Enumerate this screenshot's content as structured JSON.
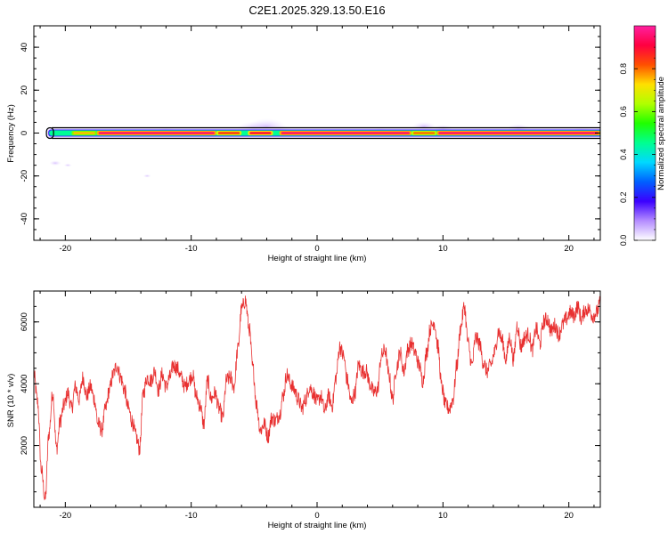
{
  "title": "C2E1.2025.329.13.50.E16",
  "colors": {
    "snr_line": "#e83030",
    "axis": "#000000"
  },
  "chart_data": [
    {
      "type": "heatmap",
      "name": "spectrogram",
      "xlabel": "Height of straight line (km)",
      "ylabel": "Frequency (Hz)",
      "xlim": [
        -22.5,
        22.5
      ],
      "ylim": [
        -50,
        50
      ],
      "xticks": [
        -20,
        -10,
        0,
        10,
        20
      ],
      "xtick_labels": [
        "-20",
        "-10",
        "0",
        "10",
        "20"
      ],
      "yticks": [
        -40,
        -20,
        0,
        20,
        40
      ],
      "ytick_labels": [
        "-40",
        "-20",
        "0",
        "20",
        "40"
      ],
      "band_frequency_hz": 0,
      "band_start_km": -21.5,
      "peak_amplitude_segments": [
        {
          "x0": -19.5,
          "x1": -17.5,
          "amp": 0.75
        },
        {
          "x0": -17.5,
          "x1": -8,
          "amp": 0.95
        },
        {
          "x0": -8,
          "x1": -6,
          "amp": 0.85
        },
        {
          "x0": -5.5,
          "x1": -3.5,
          "amp": 0.9
        },
        {
          "x0": -3,
          "x1": 7.5,
          "amp": 0.95
        },
        {
          "x0": 7.5,
          "x1": 9.5,
          "amp": 0.8
        },
        {
          "x0": 9.5,
          "x1": 22.5,
          "amp": 0.95
        }
      ]
    },
    {
      "type": "colorbar",
      "name": "normalized-amplitude-colorbar",
      "label": "Normalized spectral amplitude",
      "range": [
        0,
        1
      ],
      "ticks": [
        0.0,
        0.2,
        0.4,
        0.6,
        0.8
      ],
      "tick_labels": [
        "0.0",
        "0.2",
        "0.4",
        "0.6",
        "0.8"
      ],
      "color_stops": [
        "#ffffff",
        "#b48cff",
        "#3b00ff",
        "#0060ff",
        "#00d8ff",
        "#00ff90",
        "#20ff00",
        "#b0ff00",
        "#ffe000",
        "#ff5000",
        "#ff0040",
        "#ff20a0"
      ]
    },
    {
      "type": "line",
      "name": "snr",
      "xlabel": "Height of straight line (km)",
      "ylabel": "SNR (10 * v/v)",
      "xlim": [
        -22.5,
        22.5
      ],
      "ylim": [
        0,
        7000
      ],
      "xticks": [
        -20,
        -10,
        0,
        10,
        20
      ],
      "xtick_labels": [
        "-20",
        "-10",
        "0",
        "10",
        "20"
      ],
      "yticks": [
        2000,
        4000,
        6000
      ],
      "ytick_labels": [
        "2000",
        "4000",
        "6000"
      ],
      "series": [
        {
          "name": "SNR",
          "x": [
            -22.5,
            -22.2,
            -21.9,
            -21.6,
            -21.3,
            -21.0,
            -20.7,
            -20.4,
            -20.1,
            -19.8,
            -19.5,
            -19.2,
            -18.9,
            -18.6,
            -18.3,
            -18.0,
            -17.7,
            -17.4,
            -17.1,
            -16.8,
            -16.5,
            -16.2,
            -15.9,
            -15.6,
            -15.3,
            -15.0,
            -14.7,
            -14.4,
            -14.1,
            -13.8,
            -13.5,
            -13.2,
            -12.9,
            -12.6,
            -12.3,
            -12.0,
            -11.7,
            -11.4,
            -11.1,
            -10.8,
            -10.5,
            -10.2,
            -9.9,
            -9.6,
            -9.3,
            -9.0,
            -8.7,
            -8.4,
            -8.1,
            -7.8,
            -7.5,
            -7.2,
            -6.9,
            -6.6,
            -6.3,
            -6.0,
            -5.7,
            -5.4,
            -5.1,
            -4.8,
            -4.5,
            -4.2,
            -3.9,
            -3.6,
            -3.3,
            -3.0,
            -2.7,
            -2.4,
            -2.1,
            -1.8,
            -1.5,
            -1.2,
            -0.9,
            -0.6,
            -0.3,
            0.0,
            0.3,
            0.6,
            0.9,
            1.2,
            1.5,
            1.8,
            2.1,
            2.4,
            2.7,
            3.0,
            3.3,
            3.6,
            3.9,
            4.2,
            4.5,
            4.8,
            5.1,
            5.4,
            5.7,
            6.0,
            6.3,
            6.6,
            6.9,
            7.2,
            7.5,
            7.8,
            8.1,
            8.4,
            8.7,
            9.0,
            9.3,
            9.6,
            9.9,
            10.2,
            10.5,
            10.8,
            11.1,
            11.4,
            11.7,
            12.0,
            12.3,
            12.6,
            12.9,
            13.2,
            13.5,
            13.8,
            14.1,
            14.4,
            14.7,
            15.0,
            15.3,
            15.6,
            15.9,
            16.2,
            16.5,
            16.8,
            17.1,
            17.4,
            17.7,
            18.0,
            18.3,
            18.6,
            18.9,
            19.2,
            19.5,
            19.8,
            20.1,
            20.4,
            20.7,
            21.0,
            21.3,
            21.6,
            21.9,
            22.2,
            22.5
          ],
          "y": [
            4300,
            3400,
            1200,
            250,
            2400,
            3700,
            1900,
            2800,
            3300,
            3700,
            3200,
            3900,
            3500,
            4200,
            3600,
            3900,
            3500,
            2700,
            2500,
            3200,
            3800,
            4300,
            4600,
            4200,
            3800,
            3200,
            2800,
            2300,
            1900,
            3700,
            4200,
            4100,
            4400,
            3800,
            4300,
            3900,
            4200,
            4600,
            4500,
            4200,
            3900,
            4100,
            4300,
            3600,
            3300,
            2700,
            4100,
            3500,
            3700,
            3200,
            2900,
            4100,
            4200,
            3900,
            5100,
            6400,
            6700,
            5800,
            4500,
            3300,
            2500,
            2700,
            2300,
            2900,
            2800,
            3000,
            3600,
            4300,
            4000,
            3800,
            3500,
            3200,
            3500,
            3900,
            3700,
            3400,
            3600,
            3100,
            3600,
            3300,
            4200,
            5200,
            4900,
            4100,
            3400,
            3700,
            4600,
            4400,
            4400,
            4000,
            3700,
            3800,
            4900,
            5100,
            4300,
            3500,
            4500,
            5000,
            4400,
            5100,
            5300,
            5000,
            4600,
            4100,
            5000,
            5800,
            6000,
            5200,
            3900,
            3300,
            3200,
            3500,
            4600,
            5800,
            6500,
            5300,
            4600,
            5500,
            5300,
            4700,
            4400,
            4600,
            5000,
            5700,
            5400,
            4800,
            5500,
            4800,
            5900,
            5200,
            5500,
            5600,
            5100,
            5800,
            5300,
            6000,
            6100,
            5700,
            5900,
            5600,
            5900,
            6100,
            6300,
            6200,
            6500,
            6100,
            6400,
            6400,
            6200,
            6300,
            6600
          ]
        }
      ]
    }
  ]
}
